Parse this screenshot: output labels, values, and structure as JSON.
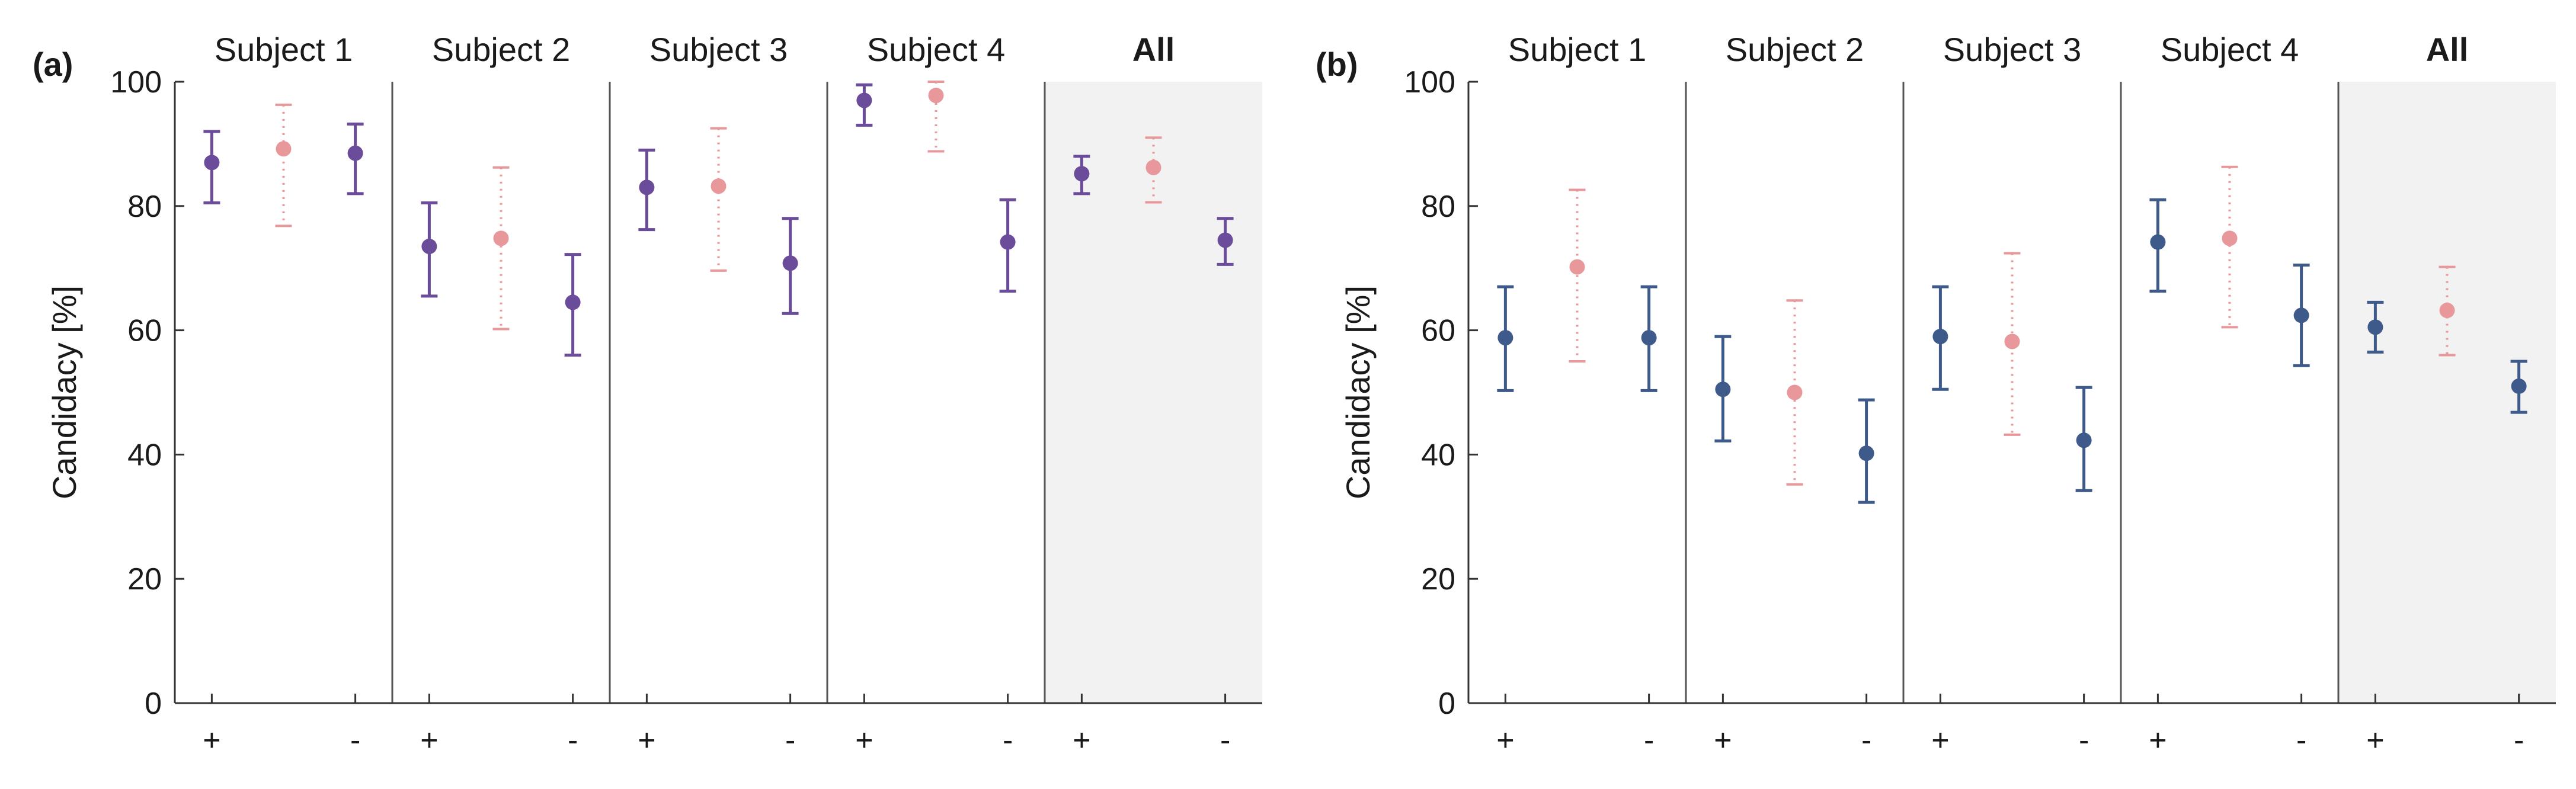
{
  "chart_data": [
    {
      "type": "scatter",
      "panel_label": "(a)",
      "ylabel": "Candidacy [%]",
      "ylim": [
        0,
        100
      ],
      "yticks": [
        0,
        20,
        40,
        60,
        80,
        100
      ],
      "xtick_labels": [
        "+",
        "-"
      ],
      "groups": [
        "Subject 1",
        "Subject 2",
        "Subject 3",
        "Subject 4",
        "All"
      ],
      "highlight_group": "All",
      "series": [
        {
          "name": "+",
          "style": "solid",
          "color": "#6B4C9A",
          "values": [
            87,
            73.5,
            83,
            97,
            85.2
          ],
          "lower": [
            80.5,
            65.5,
            76.2,
            93,
            82
          ],
          "upper": [
            92,
            80.5,
            89,
            99.5,
            88
          ]
        },
        {
          "name": "center",
          "style": "dotted",
          "color": "#E8979A",
          "values": [
            89.2,
            74.8,
            83.2,
            97.8,
            86.2
          ],
          "lower": [
            76.8,
            60.2,
            69.6,
            88.8,
            80.6
          ],
          "upper": [
            96.3,
            86.2,
            92.5,
            100,
            91
          ]
        },
        {
          "name": "-",
          "style": "solid",
          "color": "#6B4C9A",
          "values": [
            88.5,
            64.5,
            70.8,
            74.2,
            74.5
          ],
          "lower": [
            82,
            56,
            62.7,
            66.3,
            70.6
          ],
          "upper": [
            93.2,
            72.2,
            78,
            81,
            78
          ]
        }
      ]
    },
    {
      "type": "scatter",
      "panel_label": "(b)",
      "ylabel": "Candidacy [%]",
      "ylim": [
        0,
        100
      ],
      "yticks": [
        0,
        20,
        40,
        60,
        80,
        100
      ],
      "xtick_labels": [
        "+",
        "-"
      ],
      "groups": [
        "Subject 1",
        "Subject 2",
        "Subject 3",
        "Subject 4",
        "All"
      ],
      "highlight_group": "All",
      "series": [
        {
          "name": "+",
          "style": "solid",
          "color": "#3E5A8A",
          "values": [
            58.8,
            50.5,
            59,
            74.2,
            60.5
          ],
          "lower": [
            50.3,
            42.2,
            50.5,
            66.3,
            56.5
          ],
          "upper": [
            67,
            59,
            67,
            81,
            64.5
          ]
        },
        {
          "name": "center",
          "style": "dotted",
          "color": "#E8979A",
          "values": [
            70.2,
            50,
            58.2,
            74.8,
            63.2
          ],
          "lower": [
            55,
            35.2,
            43.2,
            60.5,
            56
          ],
          "upper": [
            82.6,
            64.8,
            72.4,
            86.3,
            70.2
          ]
        },
        {
          "name": "-",
          "style": "solid",
          "color": "#3E5A8A",
          "values": [
            58.8,
            40.2,
            42.3,
            62.4,
            51
          ],
          "lower": [
            50.3,
            32.3,
            34.2,
            54.3,
            46.8
          ],
          "upper": [
            67,
            48.8,
            50.8,
            70.5,
            55
          ]
        }
      ]
    }
  ],
  "colors": {
    "axis": "#333333",
    "divider": "#555555",
    "highlight_bg": "#F2F2F2"
  }
}
